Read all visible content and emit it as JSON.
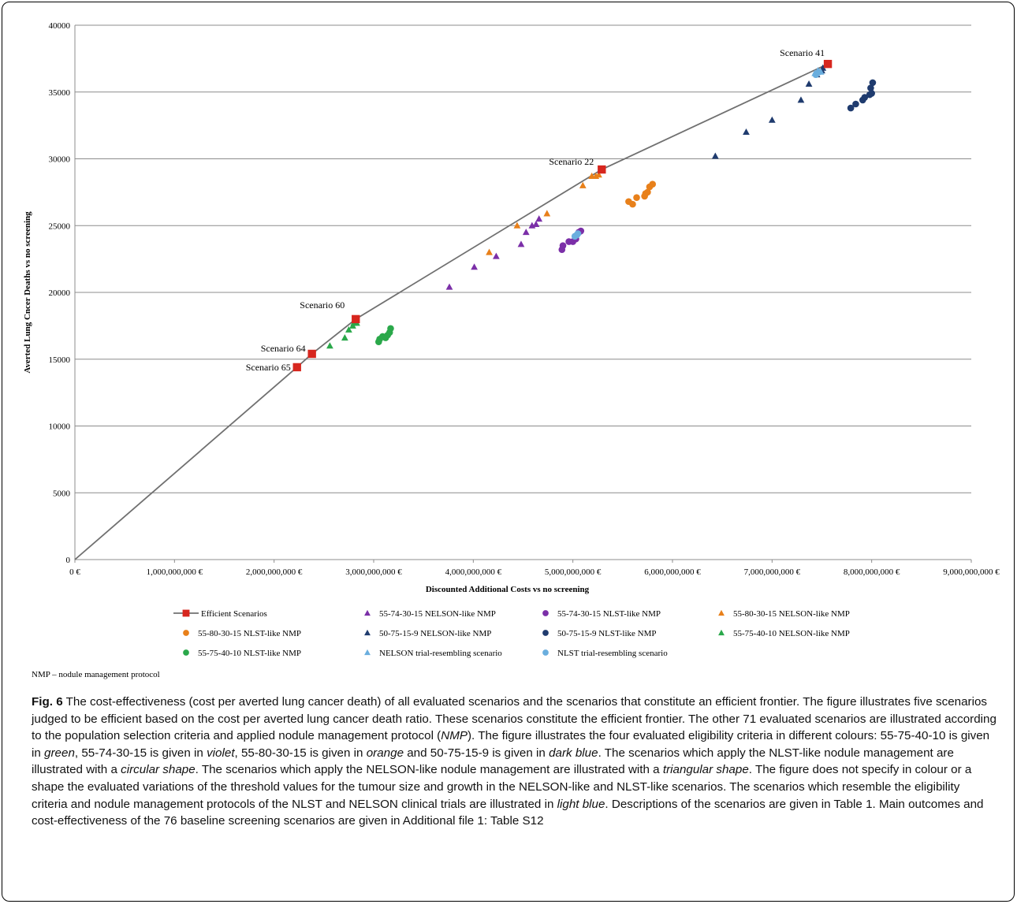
{
  "chart_data": {
    "type": "scatter",
    "xlabel": "Discounted Additional  Costs vs no screening",
    "ylabel": "Averted  Lung  Cncer Deaths  vs  no screening",
    "xlim": [
      0,
      9000000000
    ],
    "ylim": [
      0,
      40000
    ],
    "x_ticks": [
      0,
      1000000000,
      2000000000,
      3000000000,
      4000000000,
      5000000000,
      6000000000,
      7000000000,
      8000000000,
      9000000000
    ],
    "x_tick_labels": [
      "0 €",
      "1,000,000,000  €",
      "2,000,000,000  €",
      "3,000,000,000  €",
      "4,000,000,000  €",
      "5,000,000,000  €",
      "6,000,000,000  €",
      "7,000,000,000  €",
      "8,000,000,000  €",
      "9,000,000,000  €"
    ],
    "y_ticks": [
      0,
      5000,
      10000,
      15000,
      20000,
      25000,
      30000,
      35000,
      40000
    ],
    "y_tick_labels": [
      "0",
      "5000",
      "10000",
      "15000",
      "20000",
      "25000",
      "30000",
      "35000",
      "40000"
    ],
    "grid": "horizontal",
    "legend_position": "bottom",
    "series": [
      {
        "name": "Efficient Scenarios",
        "marker": "square-line",
        "color": "#d7261e",
        "line_color": "#707070",
        "points": [
          [
            0,
            0
          ],
          [
            2230000000,
            14400
          ],
          [
            2380000000,
            15400
          ],
          [
            2820000000,
            18000
          ],
          [
            5290000000,
            29200
          ],
          [
            7560000000,
            37100
          ]
        ],
        "labels": [
          "",
          "Scenario 65",
          "Scenario 64",
          "Scenario 60",
          "Scenario 22",
          "Scenario 41"
        ]
      },
      {
        "name": "55-74-30-15 NELSON-like NMP",
        "marker": "triangle",
        "color": "#7b2fa8",
        "points": [
          [
            3760000000,
            20400
          ],
          [
            4010000000,
            21900
          ],
          [
            4230000000,
            22700
          ],
          [
            4480000000,
            23600
          ],
          [
            4530000000,
            24500
          ],
          [
            4590000000,
            25000
          ],
          [
            4630000000,
            25100
          ],
          [
            4660000000,
            25500
          ]
        ]
      },
      {
        "name": "55-74-30-15 NLST-like NMP",
        "marker": "circle",
        "color": "#7b2fa8",
        "points": [
          [
            4890000000,
            23200
          ],
          [
            4900000000,
            23500
          ],
          [
            4960000000,
            23800
          ],
          [
            5000000000,
            23800
          ],
          [
            5030000000,
            24000
          ],
          [
            5060000000,
            24500
          ],
          [
            5080000000,
            24600
          ]
        ]
      },
      {
        "name": "55-80-30-15 NELSON-like NMP",
        "marker": "triangle",
        "color": "#e8801a",
        "points": [
          [
            4160000000,
            23000
          ],
          [
            4440000000,
            25000
          ],
          [
            4740000000,
            25900
          ],
          [
            5100000000,
            28000
          ],
          [
            5190000000,
            28700
          ],
          [
            5230000000,
            28700
          ],
          [
            5260000000,
            28800
          ]
        ]
      },
      {
        "name": "55-80-30-15 NLST-like NMP",
        "marker": "circle",
        "color": "#e8801a",
        "points": [
          [
            5560000000,
            26800
          ],
          [
            5600000000,
            26600
          ],
          [
            5640000000,
            27100
          ],
          [
            5720000000,
            27200
          ],
          [
            5730000000,
            27400
          ],
          [
            5750000000,
            27500
          ],
          [
            5770000000,
            27900
          ],
          [
            5800000000,
            28100
          ]
        ]
      },
      {
        "name": "50-75-15-9 NELSON-like NMP",
        "marker": "triangle",
        "color": "#1f3b6e",
        "points": [
          [
            6430000000,
            30200
          ],
          [
            6740000000,
            32000
          ],
          [
            7000000000,
            32900
          ],
          [
            7290000000,
            34400
          ],
          [
            7370000000,
            35600
          ],
          [
            7450000000,
            36300
          ],
          [
            7500000000,
            36600
          ],
          [
            7510000000,
            36800
          ]
        ]
      },
      {
        "name": "50-75-15-9 NLST-like NMP",
        "marker": "circle",
        "color": "#1f3b6e",
        "points": [
          [
            7790000000,
            33800
          ],
          [
            7840000000,
            34100
          ],
          [
            7910000000,
            34400
          ],
          [
            7930000000,
            34600
          ],
          [
            7980000000,
            34800
          ],
          [
            7990000000,
            35300
          ],
          [
            8010000000,
            35700
          ],
          [
            8000000000,
            34900
          ]
        ]
      },
      {
        "name": "55-75-40-10 NELSON-like NMP",
        "marker": "triangle",
        "color": "#2aa84a",
        "points": [
          [
            2560000000,
            16000
          ],
          [
            2710000000,
            16600
          ],
          [
            2750000000,
            17200
          ],
          [
            2790000000,
            17500
          ],
          [
            2800000000,
            17700
          ],
          [
            2830000000,
            17700
          ]
        ]
      },
      {
        "name": "55-75-40-10 NLST-like NMP",
        "marker": "circle",
        "color": "#2aa84a",
        "points": [
          [
            3050000000,
            16300
          ],
          [
            3060000000,
            16500
          ],
          [
            3090000000,
            16700
          ],
          [
            3120000000,
            16600
          ],
          [
            3140000000,
            16800
          ],
          [
            3160000000,
            17000
          ],
          [
            3170000000,
            17300
          ]
        ]
      },
      {
        "name": "NELSON trial-resembling scenario",
        "marker": "triangle",
        "color": "#6aaede",
        "points": [
          [
            7430000000,
            36400
          ],
          [
            7460000000,
            36600
          ],
          [
            7490000000,
            36500
          ]
        ]
      },
      {
        "name": "NLST trial-resembling scenario",
        "marker": "circle",
        "color": "#6aaede",
        "points": [
          [
            5020000000,
            24200
          ],
          [
            5040000000,
            24300
          ],
          [
            5050000000,
            24400
          ],
          [
            7440000000,
            36300
          ],
          [
            7470000000,
            36500
          ]
        ]
      }
    ]
  },
  "note": "NMP – nodule management protocol",
  "caption": {
    "label": "Fig. 6",
    "segments": [
      {
        "t": " The cost-effectiveness (cost per averted lung cancer death) of all evaluated scenarios and the scenarios that constitute an efficient frontier. The figure illustrates five scenarios judged to be efficient based on the cost per averted lung cancer death ratio. These scenarios constitute the efficient frontier. The other 71 evaluated scenarios are illustrated according to the population selection criteria and applied nodule management protocol (",
        "i": false
      },
      {
        "t": "NMP",
        "i": true
      },
      {
        "t": "). The figure illustrates the four evaluated eligibility criteria in different colours: 55-75-40-10 is given in ",
        "i": false
      },
      {
        "t": "green",
        "i": true
      },
      {
        "t": ", 55-74-30-15 is given in ",
        "i": false
      },
      {
        "t": "violet",
        "i": true
      },
      {
        "t": ", 55-80-30-15 is given in ",
        "i": false
      },
      {
        "t": "orange",
        "i": true
      },
      {
        "t": " and 50-75-15-9 is given in ",
        "i": false
      },
      {
        "t": "dark blue",
        "i": true
      },
      {
        "t": ". The scenarios which apply the NLST-like nodule management are illustrated with a ",
        "i": false
      },
      {
        "t": "circular shape",
        "i": true
      },
      {
        "t": ". The scenarios which apply the NELSON-like nodule management are illustrated with a ",
        "i": false
      },
      {
        "t": "triangular shape",
        "i": true
      },
      {
        "t": ". The figure does not specify in colour or a shape the evaluated variations of the threshold values for the tumour size and growth in the NELSON-like and NLST-like scenarios. The scenarios which resemble the eligibility criteria and nodule management protocols of the NLST and NELSON clinical trials are illustrated in ",
        "i": false
      },
      {
        "t": "light blue",
        "i": true
      },
      {
        "t": ". Descriptions of the scenarios are given in Table 1. Main outcomes and cost-effectiveness of the 76 baseline screening scenarios are given in Additional file 1: Table S12",
        "i": false
      }
    ]
  }
}
